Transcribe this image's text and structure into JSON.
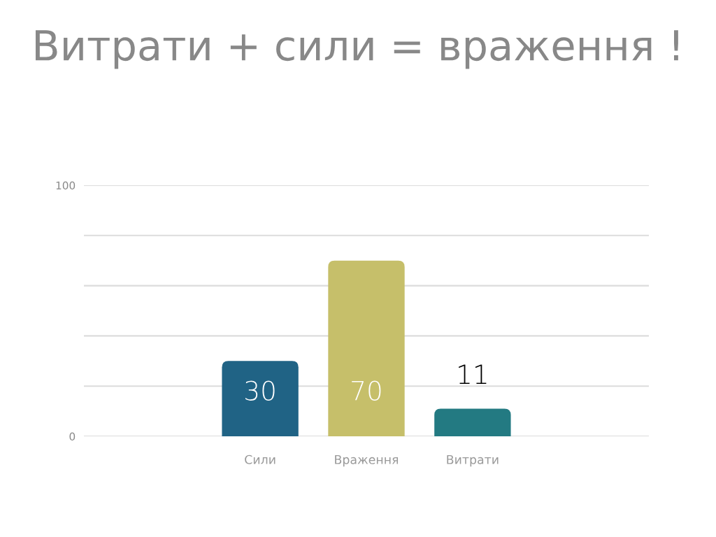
{
  "chart_data": {
    "type": "bar",
    "title": "Витрати + сили = враження !",
    "categories": [
      "Сили",
      "Враження",
      "Витрати"
    ],
    "values": [
      30,
      70,
      11
    ],
    "colors": [
      "#206385",
      "#c6bf6a",
      "#237a82"
    ],
    "ylim": [
      0,
      100
    ],
    "yticks": [
      {
        "value": 0,
        "label": "0"
      },
      {
        "value": 20,
        "label": null
      },
      {
        "value": 40,
        "label": null
      },
      {
        "value": 60,
        "label": null
      },
      {
        "value": 80,
        "label": null
      },
      {
        "value": 100,
        "label": "100"
      }
    ],
    "grid": "y",
    "data_labels": true
  }
}
